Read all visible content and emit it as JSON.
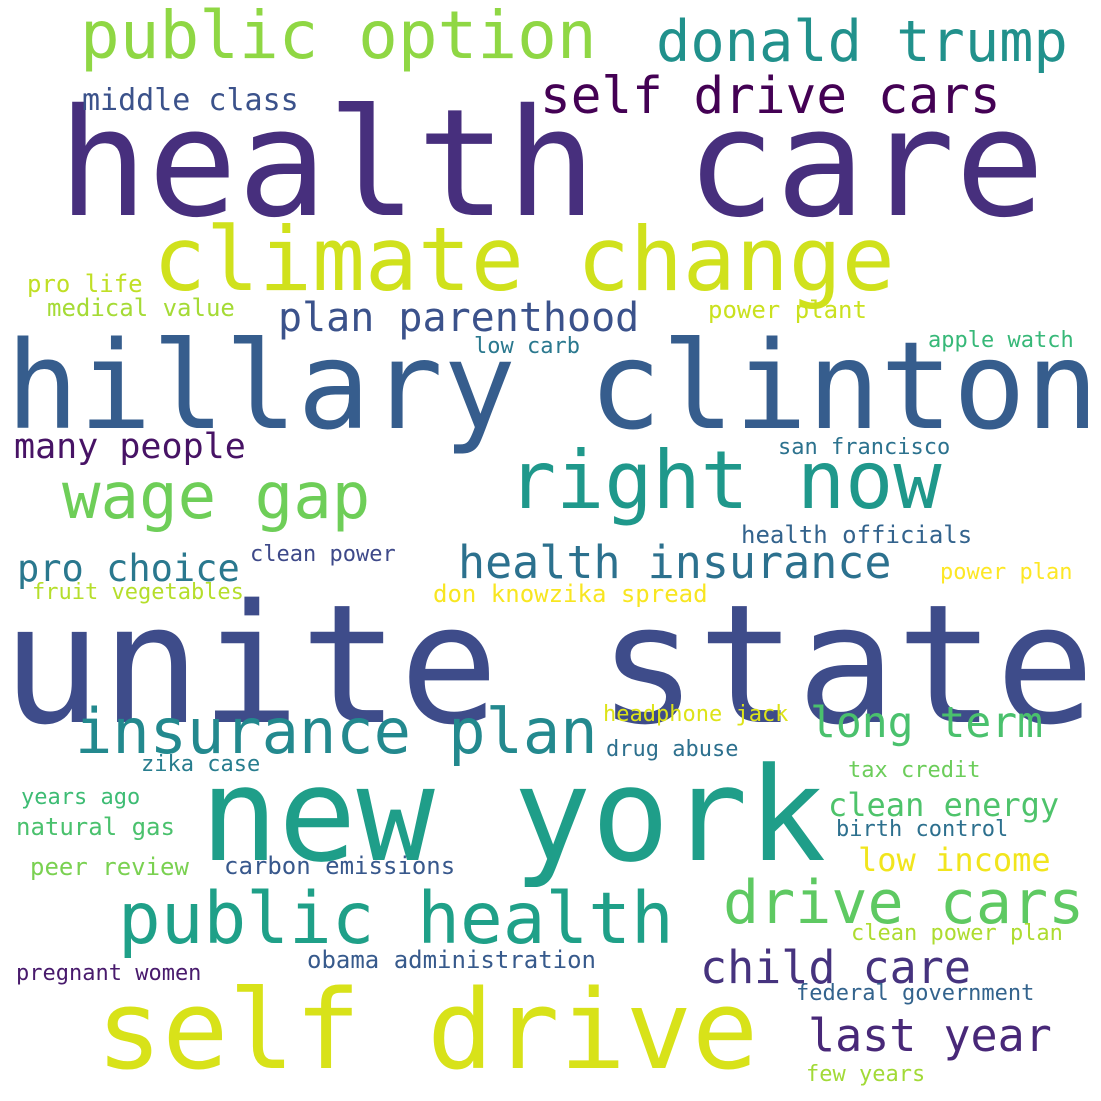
{
  "words": [
    {
      "text": "health care",
      "color": "#472f7d"
    },
    {
      "text": "unite state",
      "color": "#3e4c8a"
    },
    {
      "text": "hillary clinton",
      "color": "#365d8d"
    },
    {
      "text": "climate change",
      "color": "#d0e11c"
    },
    {
      "text": "new york",
      "color": "#1f9e89"
    },
    {
      "text": "self drive",
      "color": "#d8e219"
    },
    {
      "text": "public option",
      "color": "#8fd744"
    },
    {
      "text": "donald trump",
      "color": "#21918c"
    },
    {
      "text": "self drive cars",
      "color": "#440154"
    },
    {
      "text": "right now",
      "color": "#1f988b"
    },
    {
      "text": "wage gap",
      "color": "#6ece58"
    },
    {
      "text": "public health",
      "color": "#1fa088"
    },
    {
      "text": "insurance plan",
      "color": "#23898e"
    },
    {
      "text": "drive cars",
      "color": "#5ec962"
    },
    {
      "text": "health insurance",
      "color": "#2c718e"
    },
    {
      "text": "plan parenthood",
      "color": "#3b528b"
    },
    {
      "text": "child care",
      "color": "#46337e"
    },
    {
      "text": "last year",
      "color": "#482878"
    },
    {
      "text": "long term",
      "color": "#4ac16d"
    },
    {
      "text": "pro choice",
      "color": "#2a788e"
    },
    {
      "text": "many people",
      "color": "#471365"
    },
    {
      "text": "middle class",
      "color": "#3b528b"
    },
    {
      "text": "clean energy",
      "color": "#4ec36b"
    },
    {
      "text": "low income",
      "color": "#f1e51d"
    },
    {
      "text": "pro life",
      "color": "#c0df25"
    },
    {
      "text": "medical value",
      "color": "#a5db36"
    },
    {
      "text": "power plant",
      "color": "#cae11f"
    },
    {
      "text": "low carb",
      "color": "#2a788e"
    },
    {
      "text": "apple watch",
      "color": "#37b878"
    },
    {
      "text": "san francisco",
      "color": "#2c728e"
    },
    {
      "text": "health officials",
      "color": "#33638d"
    },
    {
      "text": "clean power",
      "color": "#3e4989"
    },
    {
      "text": "power plan",
      "color": "#fde725"
    },
    {
      "text": "fruit vegetables",
      "color": "#b5de2b"
    },
    {
      "text": "don knowzika spread",
      "color": "#f8e621"
    },
    {
      "text": "headphone jack",
      "color": "#dde318"
    },
    {
      "text": "drug abuse",
      "color": "#2d708e"
    },
    {
      "text": "zika case",
      "color": "#287d8e"
    },
    {
      "text": "tax credit",
      "color": "#6ccd5a"
    },
    {
      "text": "years ago",
      "color": "#3dbc74"
    },
    {
      "text": "natural gas",
      "color": "#4ac16d"
    },
    {
      "text": "birth control",
      "color": "#2d708e"
    },
    {
      "text": "peer review",
      "color": "#7ad151"
    },
    {
      "text": "carbon emissions",
      "color": "#38588c"
    },
    {
      "text": "clean power plan",
      "color": "#addc30"
    },
    {
      "text": "obama administration",
      "color": "#375a8c"
    },
    {
      "text": "pregnant women",
      "color": "#481a6c"
    },
    {
      "text": "federal government",
      "color": "#33638d"
    },
    {
      "text": "few years",
      "color": "#a2da37"
    }
  ]
}
